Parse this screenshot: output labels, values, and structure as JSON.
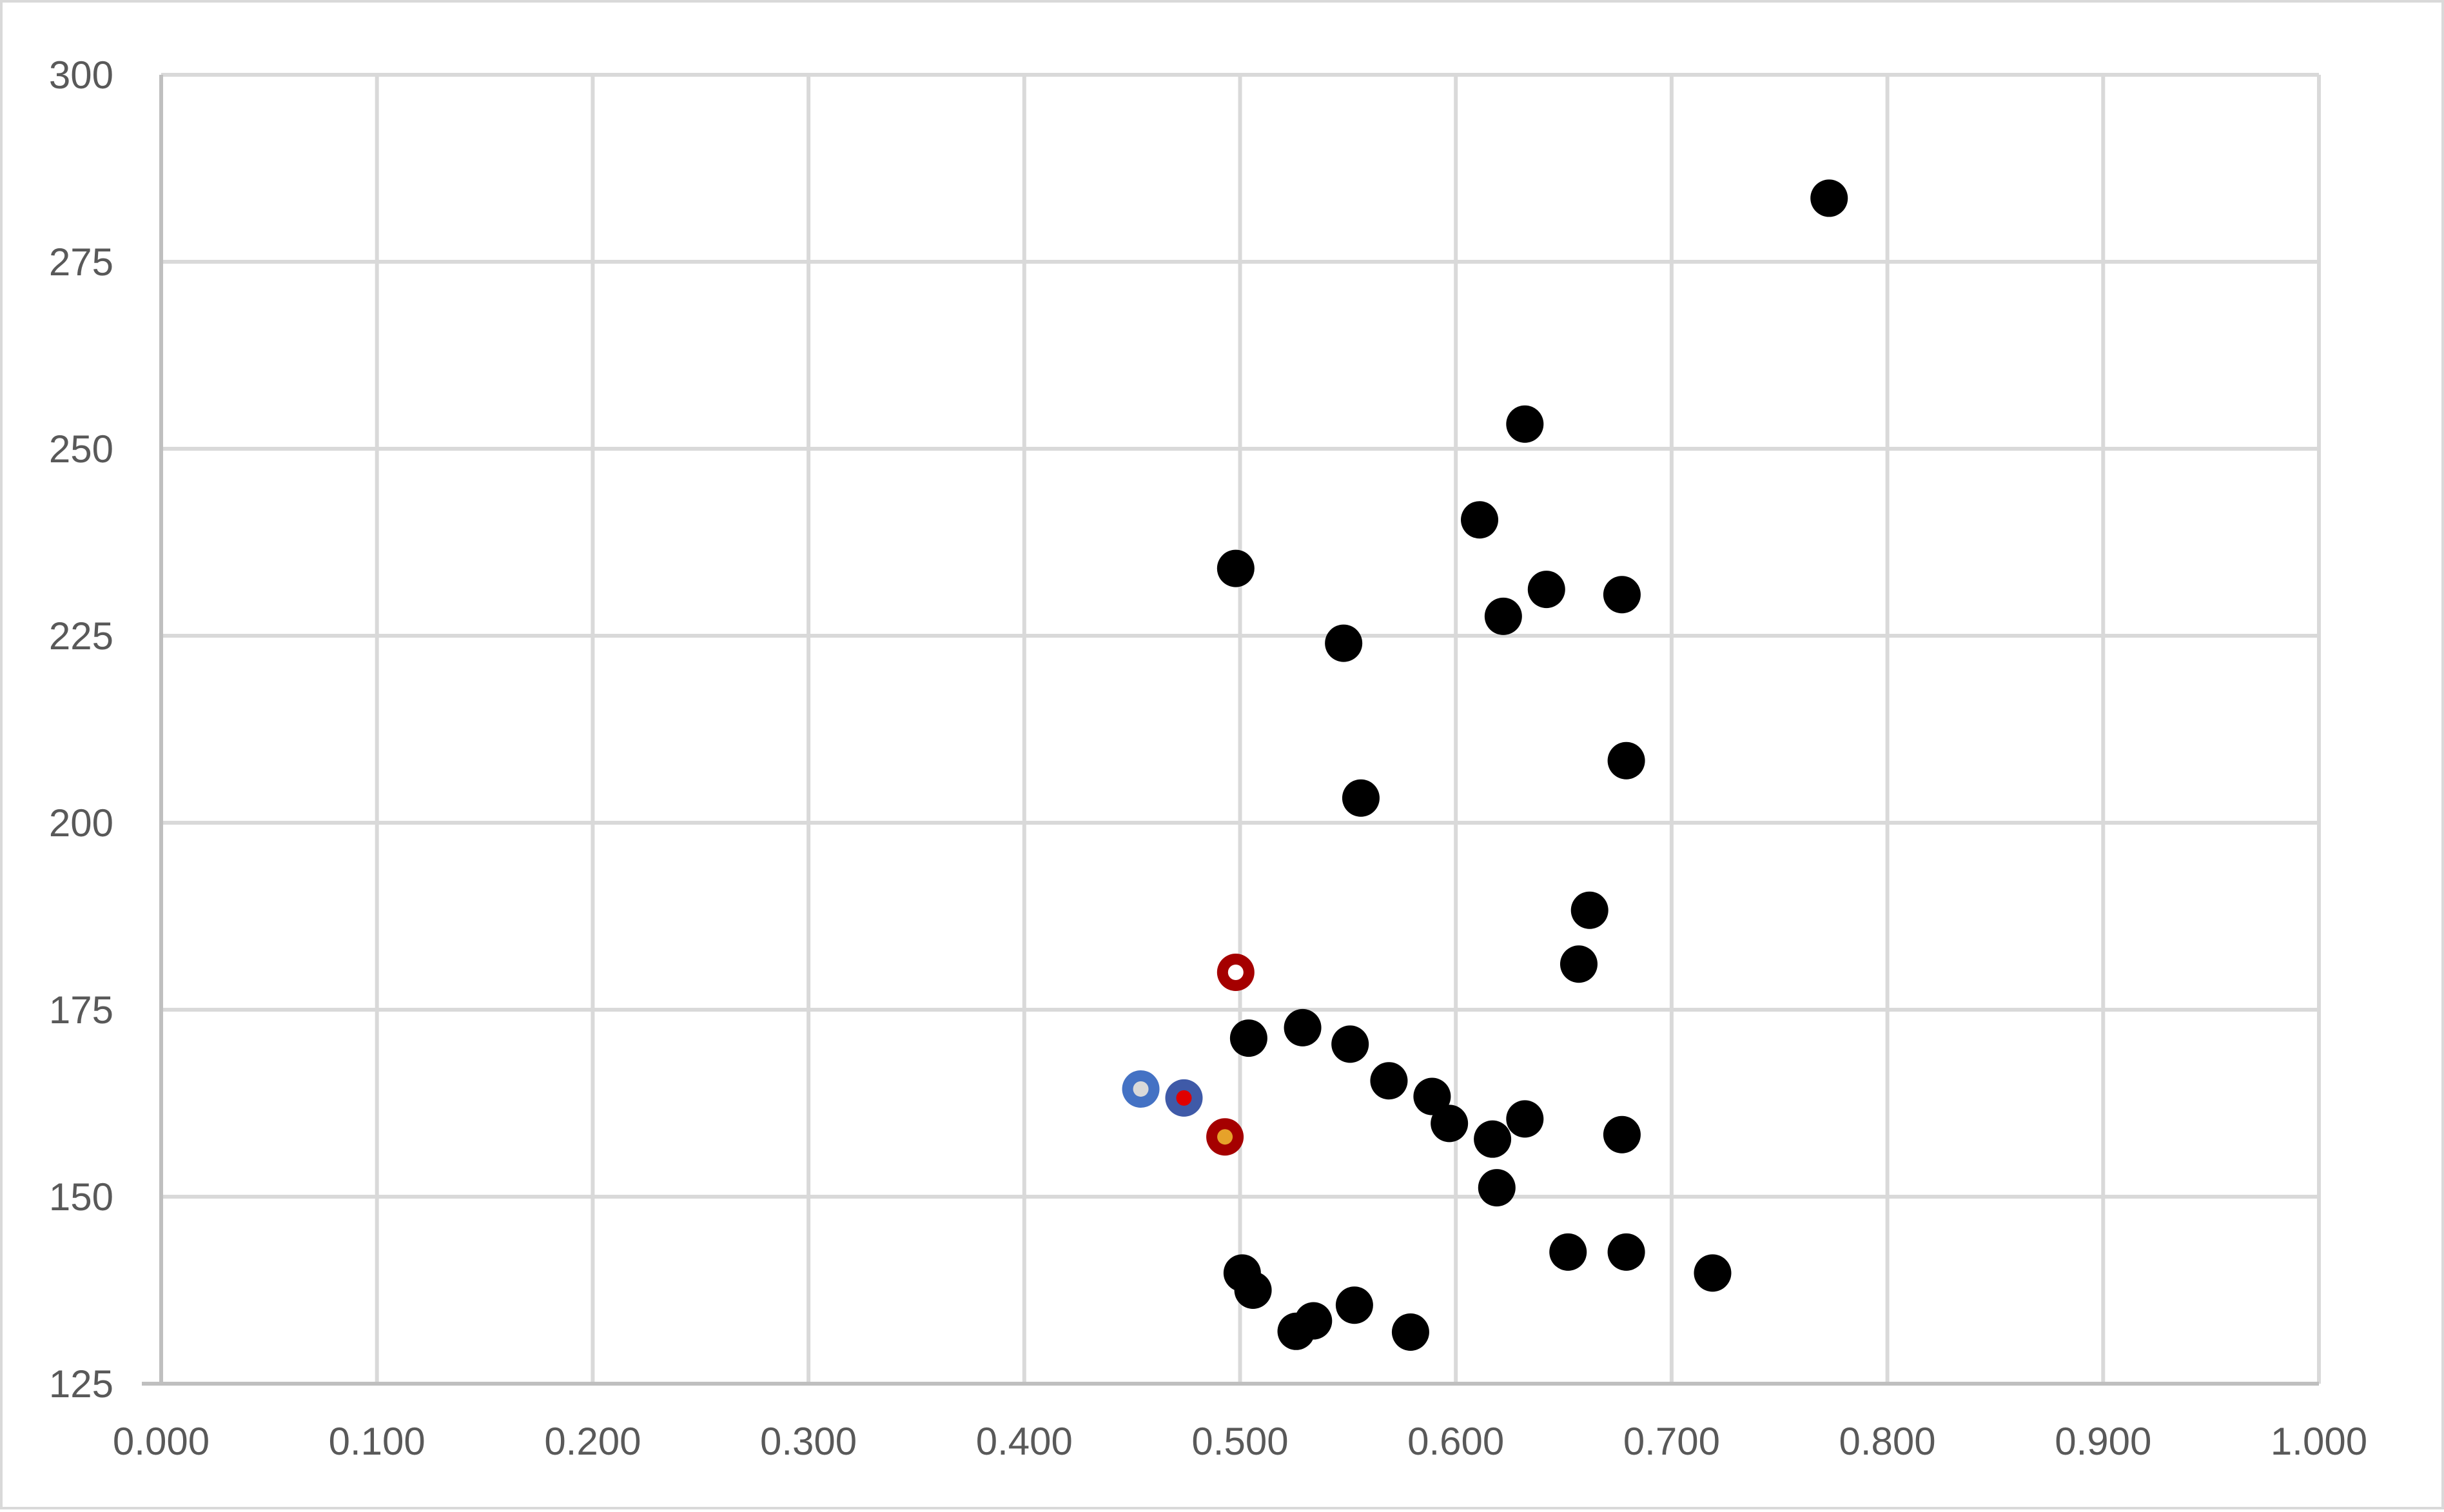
{
  "chart_data": {
    "type": "scatter",
    "title": "",
    "xlabel": "",
    "ylabel": "",
    "xlim": [
      0,
      1
    ],
    "ylim": [
      125,
      300
    ],
    "x_ticks": [
      0,
      0.1,
      0.2,
      0.3,
      0.4,
      0.5,
      0.6,
      0.7,
      0.8,
      0.9,
      1.0
    ],
    "y_ticks": [
      125,
      150,
      175,
      200,
      225,
      250,
      275,
      300
    ],
    "x_tick_labels": [
      "0.000",
      "0.100",
      "0.200",
      "0.300",
      "0.400",
      "0.500",
      "0.600",
      "0.700",
      "0.800",
      "0.900",
      "1.000"
    ],
    "y_tick_labels": [
      "125",
      "150",
      "175",
      "200",
      "225",
      "250",
      "275",
      "300"
    ],
    "grid": true,
    "legend": "none",
    "series": [
      {
        "style": "solid-black",
        "color": "#000000",
        "points": [
          {
            "x": 0.773,
            "y": 283.5
          },
          {
            "x": 0.632,
            "y": 253.3
          },
          {
            "x": 0.611,
            "y": 240.5
          },
          {
            "x": 0.498,
            "y": 234.0
          },
          {
            "x": 0.642,
            "y": 231.2
          },
          {
            "x": 0.677,
            "y": 230.5
          },
          {
            "x": 0.622,
            "y": 227.6
          },
          {
            "x": 0.548,
            "y": 224.0
          },
          {
            "x": 0.679,
            "y": 208.3
          },
          {
            "x": 0.556,
            "y": 203.3
          },
          {
            "x": 0.662,
            "y": 188.3
          },
          {
            "x": 0.657,
            "y": 181.1
          },
          {
            "x": 0.504,
            "y": 171.2
          },
          {
            "x": 0.529,
            "y": 172.6
          },
          {
            "x": 0.551,
            "y": 170.4
          },
          {
            "x": 0.569,
            "y": 165.5
          },
          {
            "x": 0.589,
            "y": 163.4
          },
          {
            "x": 0.597,
            "y": 159.8
          },
          {
            "x": 0.632,
            "y": 160.4
          },
          {
            "x": 0.617,
            "y": 157.7
          },
          {
            "x": 0.677,
            "y": 158.3
          },
          {
            "x": 0.619,
            "y": 151.2
          },
          {
            "x": 0.652,
            "y": 142.6
          },
          {
            "x": 0.679,
            "y": 142.6
          },
          {
            "x": 0.719,
            "y": 139.8
          },
          {
            "x": 0.501,
            "y": 139.8
          },
          {
            "x": 0.506,
            "y": 137.5
          },
          {
            "x": 0.553,
            "y": 135.5
          },
          {
            "x": 0.534,
            "y": 133.4
          },
          {
            "x": 0.526,
            "y": 132.0
          },
          {
            "x": 0.579,
            "y": 131.9
          }
        ]
      },
      {
        "style": "ringed",
        "points": [
          {
            "x": 0.498,
            "y": 180.0,
            "ring": "#a50000",
            "fill": "#ffffff"
          },
          {
            "x": 0.493,
            "y": 158.0,
            "ring": "#a50000",
            "fill": "#e6a22a"
          },
          {
            "x": 0.454,
            "y": 164.4,
            "ring": "#4472c4",
            "fill": "#d9d9d9"
          },
          {
            "x": 0.474,
            "y": 163.2,
            "ring": "#3f5aa8",
            "fill": "#e00000"
          }
        ]
      }
    ]
  },
  "colors": {
    "grid": "#d9d9d9",
    "axis": "#bfbfbf",
    "tick_text": "#595959"
  }
}
